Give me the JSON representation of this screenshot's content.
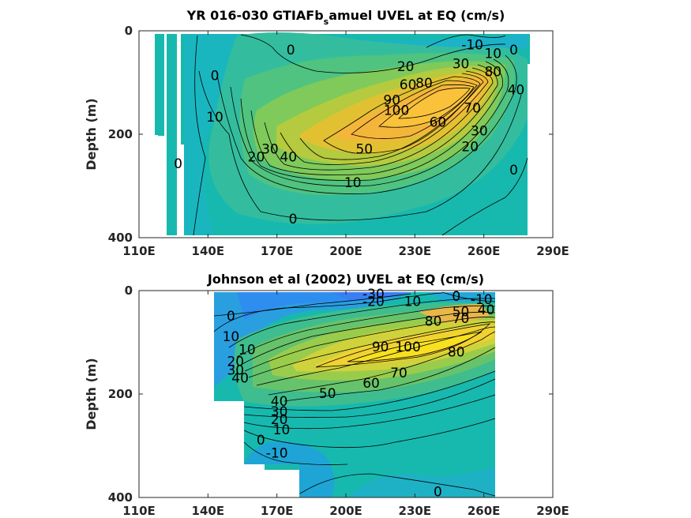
{
  "chart_data": [
    {
      "type": "contour",
      "title": {
        "main": "YR 016-030 GTIAFb",
        "sub": "s",
        "rest": "amuel UVEL at EQ (cm/s)"
      },
      "xlabel": "",
      "ylabel": "Depth (m)",
      "xticks": [
        "110E",
        "140E",
        "170E",
        "200E",
        "230E",
        "260E",
        "290E"
      ],
      "yticks": [
        "0",
        "200",
        "400"
      ],
      "xlim": [
        110,
        290
      ],
      "ylim": [
        400,
        0
      ],
      "core": {
        "lon": 240,
        "depth": 115,
        "max": 100
      },
      "contour_labels": [
        {
          "text": "0",
          "lon": 143,
          "depth": 88
        },
        {
          "text": "0",
          "lon": 176,
          "depth": 38
        },
        {
          "text": "0",
          "lon": 127,
          "depth": 258
        },
        {
          "text": "0",
          "lon": 177,
          "depth": 365
        },
        {
          "text": "0",
          "lon": 273,
          "depth": 270
        },
        {
          "text": "0",
          "lon": 273,
          "depth": 38
        },
        {
          "text": "-10",
          "lon": 255,
          "depth": 28
        },
        {
          "text": "10",
          "lon": 264,
          "depth": 45
        },
        {
          "text": "10",
          "lon": 203,
          "depth": 295
        },
        {
          "text": "10",
          "lon": 143,
          "depth": 168
        },
        {
          "text": "20",
          "lon": 226,
          "depth": 70
        },
        {
          "text": "20",
          "lon": 254,
          "depth": 225
        },
        {
          "text": "20",
          "lon": 161,
          "depth": 245
        },
        {
          "text": "30",
          "lon": 250,
          "depth": 65
        },
        {
          "text": "30",
          "lon": 258,
          "depth": 195
        },
        {
          "text": "30",
          "lon": 167,
          "depth": 230
        },
        {
          "text": "40",
          "lon": 175,
          "depth": 245
        },
        {
          "text": "40",
          "lon": 274,
          "depth": 115
        },
        {
          "text": "50",
          "lon": 208,
          "depth": 230
        },
        {
          "text": "60",
          "lon": 227,
          "depth": 105
        },
        {
          "text": "60",
          "lon": 240,
          "depth": 178
        },
        {
          "text": "70",
          "lon": 255,
          "depth": 150
        },
        {
          "text": "80",
          "lon": 264,
          "depth": 80
        },
        {
          "text": "80",
          "lon": 234,
          "depth": 102
        },
        {
          "text": "90",
          "lon": 220,
          "depth": 135
        },
        {
          "text": "100",
          "lon": 222,
          "depth": 155
        }
      ]
    },
    {
      "type": "contour",
      "title": {
        "main": "Johnson et al (2002) UVEL at EQ (cm/s)",
        "sub": "",
        "rest": ""
      },
      "xlabel": "",
      "ylabel": "Depth (m)",
      "xticks": [
        "110E",
        "140E",
        "170E",
        "200E",
        "230E",
        "260E",
        "290E"
      ],
      "yticks": [
        "0",
        "200",
        "400"
      ],
      "xlim": [
        110,
        290
      ],
      "ylim": [
        400,
        0
      ],
      "core": {
        "lon": 215,
        "depth": 125,
        "max": 100
      },
      "contour_labels": [
        {
          "text": "-30",
          "lon": 212,
          "depth": 8
        },
        {
          "text": "-20",
          "lon": 212,
          "depth": 22
        },
        {
          "text": "10",
          "lon": 229,
          "depth": 22
        },
        {
          "text": "0",
          "lon": 248,
          "depth": 12
        },
        {
          "text": "-10",
          "lon": 259,
          "depth": 18
        },
        {
          "text": "50",
          "lon": 250,
          "depth": 42
        },
        {
          "text": "40",
          "lon": 261,
          "depth": 38
        },
        {
          "text": "80",
          "lon": 238,
          "depth": 60
        },
        {
          "text": "70",
          "lon": 250,
          "depth": 55
        },
        {
          "text": "0",
          "lon": 150,
          "depth": 50
        },
        {
          "text": "10",
          "lon": 150,
          "depth": 90
        },
        {
          "text": "10",
          "lon": 157,
          "depth": 115
        },
        {
          "text": "20",
          "lon": 152,
          "depth": 138
        },
        {
          "text": "30",
          "lon": 152,
          "depth": 155
        },
        {
          "text": "40",
          "lon": 154,
          "depth": 170
        },
        {
          "text": "90",
          "lon": 215,
          "depth": 110
        },
        {
          "text": "100",
          "lon": 227,
          "depth": 110
        },
        {
          "text": "80",
          "lon": 248,
          "depth": 120
        },
        {
          "text": "70",
          "lon": 223,
          "depth": 160
        },
        {
          "text": "60",
          "lon": 211,
          "depth": 180
        },
        {
          "text": "50",
          "lon": 192,
          "depth": 200
        },
        {
          "text": "40",
          "lon": 171,
          "depth": 215
        },
        {
          "text": "30",
          "lon": 171,
          "depth": 235
        },
        {
          "text": "20",
          "lon": 171,
          "depth": 250
        },
        {
          "text": "10",
          "lon": 172,
          "depth": 270
        },
        {
          "text": "0",
          "lon": 163,
          "depth": 290
        },
        {
          "text": "-10",
          "lon": 170,
          "depth": 315
        },
        {
          "text": "0",
          "lon": 240,
          "depth": 390
        }
      ]
    }
  ]
}
